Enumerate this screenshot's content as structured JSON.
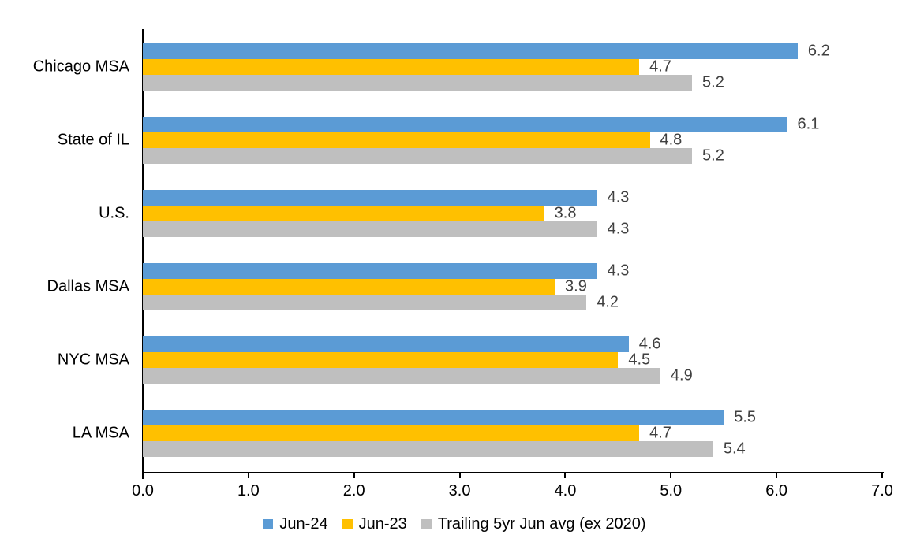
{
  "chart_data": {
    "type": "bar",
    "orientation": "horizontal",
    "title": "",
    "categories": [
      "Chicago MSA",
      "State of IL",
      "U.S.",
      "Dallas MSA",
      "NYC MSA",
      "LA MSA"
    ],
    "series": [
      {
        "name": "Jun-24",
        "color": "#5B9BD5",
        "values": [
          6.2,
          6.1,
          4.3,
          4.3,
          4.6,
          5.5
        ]
      },
      {
        "name": "Jun-23",
        "color": "#FFC000",
        "values": [
          4.7,
          4.8,
          3.8,
          3.9,
          4.5,
          4.7
        ]
      },
      {
        "name": "Trailing 5yr Jun avg (ex 2020)",
        "color": "#BFBFBF",
        "values": [
          5.2,
          5.2,
          4.3,
          4.2,
          4.9,
          5.4
        ]
      }
    ],
    "x_axis": {
      "min": 0.0,
      "max": 7.0,
      "tick_interval": 1.0,
      "tick_labels": [
        "0.0",
        "1.0",
        "2.0",
        "3.0",
        "4.0",
        "5.0",
        "6.0",
        "7.0"
      ]
    },
    "data_labels_shown": true,
    "data_label_format": "0.0",
    "data_label_color": "#404040",
    "axis_color": "#000000",
    "text_color": "#000000",
    "background_color": "#FFFFFF",
    "grid": "off",
    "legend_position": "bottom"
  }
}
